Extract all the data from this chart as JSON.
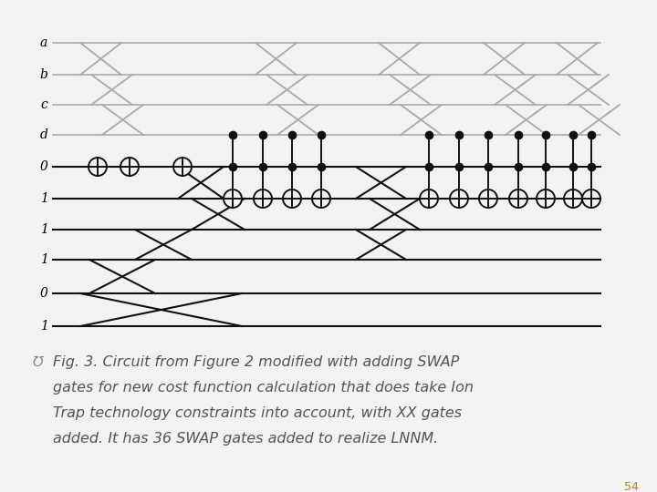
{
  "background_color": "#f2f2f2",
  "wire_labels": [
    "a",
    "b",
    "c",
    "d",
    "0",
    "1",
    "1",
    "1",
    "0",
    "1"
  ],
  "caption_line1": "Fig. 3. Circuit from Figure 2 modified with adding SWAP",
  "caption_line2": "gates for new cost function calculation that does take Ion",
  "caption_line3": "Trap technology constraints into account, with XX gates",
  "caption_line4": "added. It has 36 SWAP gates added to realize LNNM.",
  "caption_color": "#555555",
  "page_number": "54",
  "page_number_color": "#b8860b",
  "font_size_caption": 11.5,
  "font_size_label": 10,
  "font_size_page": 9,
  "gray_wire": "#aaaaaa",
  "black_wire": "#111111"
}
